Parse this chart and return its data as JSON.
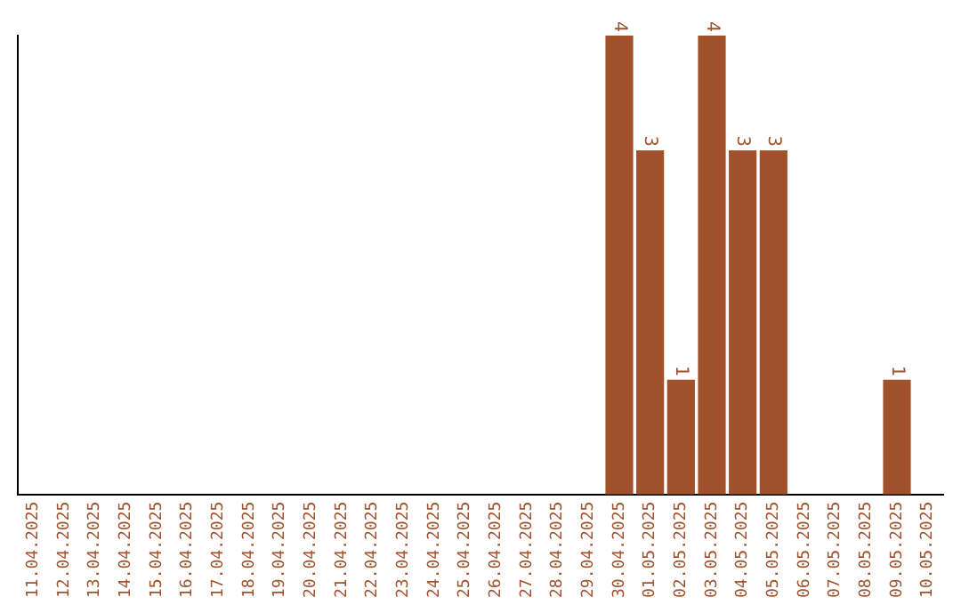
{
  "chart_data": {
    "type": "bar",
    "categories": [
      "11.04.2025",
      "12.04.2025",
      "13.04.2025",
      "14.04.2025",
      "15.04.2025",
      "16.04.2025",
      "17.04.2025",
      "18.04.2025",
      "19.04.2025",
      "20.04.2025",
      "21.04.2025",
      "22.04.2025",
      "23.04.2025",
      "24.04.2025",
      "25.04.2025",
      "26.04.2025",
      "27.04.2025",
      "28.04.2025",
      "29.04.2025",
      "30.04.2025",
      "01.05.2025",
      "02.05.2025",
      "03.05.2025",
      "04.05.2025",
      "05.05.2025",
      "06.05.2025",
      "07.05.2025",
      "08.05.2025",
      "09.05.2025",
      "10.05.2025"
    ],
    "values": [
      null,
      null,
      null,
      null,
      null,
      null,
      null,
      null,
      null,
      null,
      null,
      null,
      null,
      null,
      null,
      null,
      null,
      null,
      null,
      4,
      3,
      1,
      4,
      3,
      3,
      null,
      null,
      null,
      1,
      null
    ],
    "color": "#a0522d",
    "data_labels": true,
    "grid": false,
    "legend": false,
    "tick_labels": "x"
  }
}
